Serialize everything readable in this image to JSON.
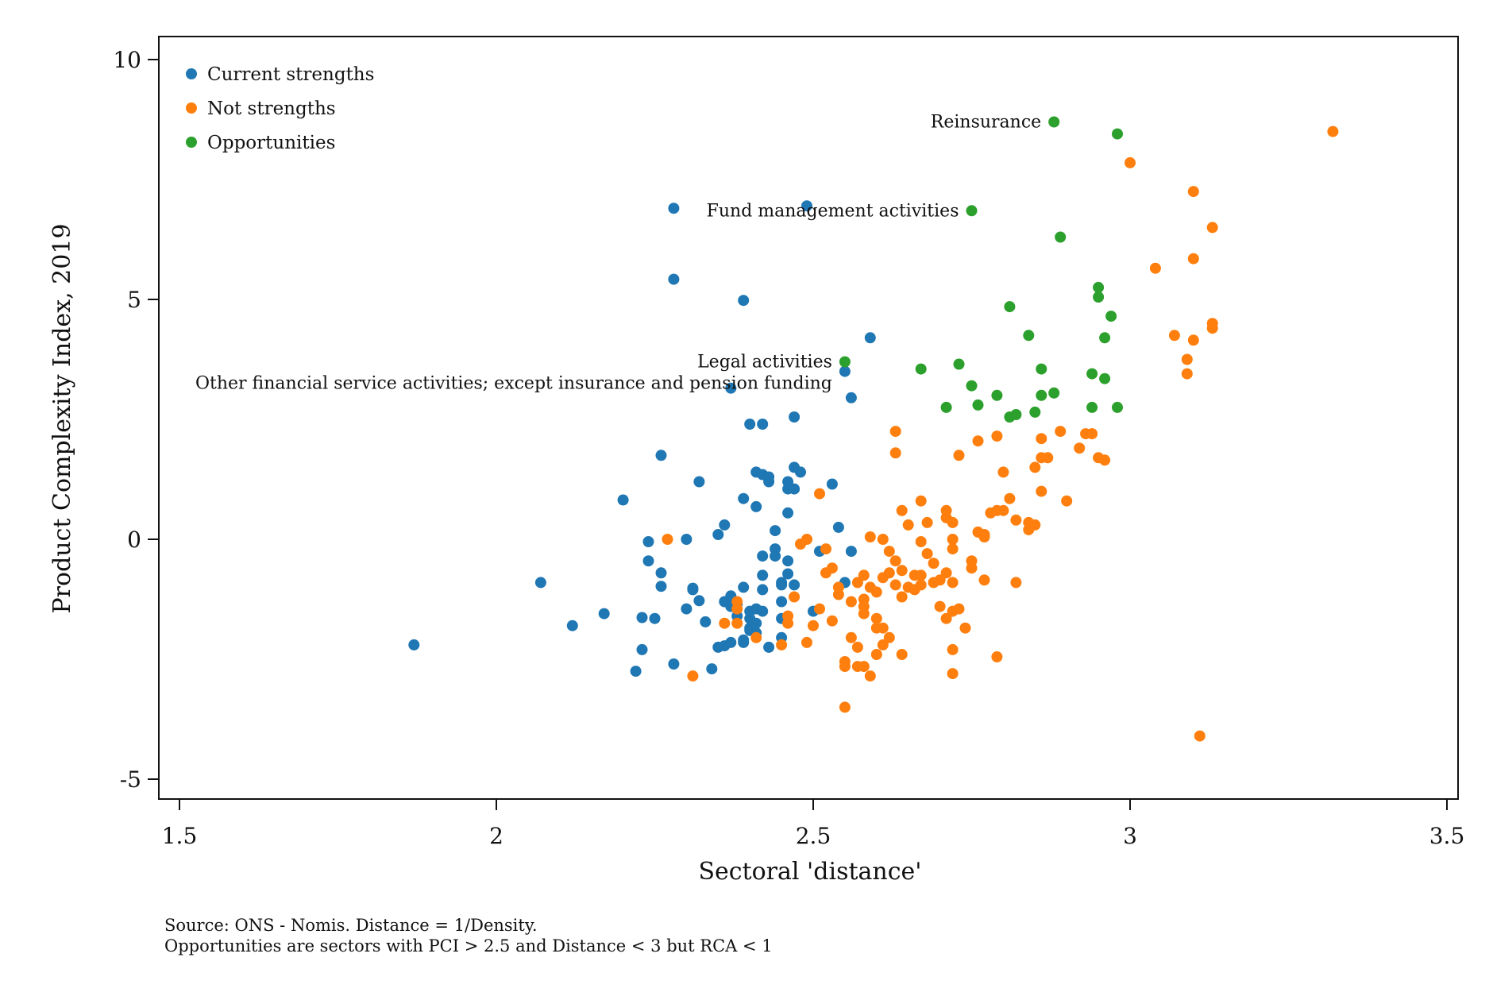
{
  "chart_data": {
    "type": "scatter",
    "title": "",
    "xlabel": "Sectoral 'distance'",
    "ylabel": "Product Complexity Index, 2019",
    "xlim": [
      1.5,
      3.5
    ],
    "ylim": [
      -5,
      10
    ],
    "xticks": [
      "1.5",
      "2",
      "2.5",
      "3",
      "3.5"
    ],
    "yticks": [
      "-5",
      "0",
      "5",
      "10"
    ],
    "grid": false,
    "legend_position": "top-left",
    "series": [
      {
        "name": "Current strengths",
        "color": "#1f77b4",
        "points": [
          [
            1.87,
            -2.2
          ],
          [
            2.07,
            -0.9
          ],
          [
            2.12,
            -1.8
          ],
          [
            2.17,
            -1.55
          ],
          [
            2.2,
            0.82
          ],
          [
            2.22,
            -2.75
          ],
          [
            2.23,
            -2.3
          ],
          [
            2.23,
            -1.63
          ],
          [
            2.24,
            -0.45
          ],
          [
            2.24,
            -0.05
          ],
          [
            2.25,
            -1.65
          ],
          [
            2.26,
            -0.98
          ],
          [
            2.26,
            -0.7
          ],
          [
            2.26,
            1.75
          ],
          [
            2.28,
            -2.6
          ],
          [
            2.28,
            6.9
          ],
          [
            2.28,
            5.42
          ],
          [
            2.3,
            -1.45
          ],
          [
            2.3,
            0
          ],
          [
            2.31,
            -1.02
          ],
          [
            2.31,
            -1.05
          ],
          [
            2.32,
            -1.28
          ],
          [
            2.32,
            1.2
          ],
          [
            2.33,
            -1.72
          ],
          [
            2.34,
            -2.7
          ],
          [
            2.35,
            -2.25
          ],
          [
            2.35,
            0.1
          ],
          [
            2.36,
            0.3
          ],
          [
            2.36,
            -2.22
          ],
          [
            2.36,
            -1.3
          ],
          [
            2.37,
            -1.18
          ],
          [
            2.37,
            -2.15
          ],
          [
            2.37,
            -1.4
          ],
          [
            2.37,
            3.15
          ],
          [
            2.38,
            -1.6
          ],
          [
            2.38,
            -1.35
          ],
          [
            2.39,
            4.98
          ],
          [
            2.39,
            -2.1
          ],
          [
            2.39,
            -2.15
          ],
          [
            2.39,
            0.85
          ],
          [
            2.39,
            -1
          ],
          [
            2.4,
            -1.9
          ],
          [
            2.4,
            -1.65
          ],
          [
            2.4,
            -1.5
          ],
          [
            2.4,
            -1.85
          ],
          [
            2.4,
            2.4
          ],
          [
            2.41,
            -1.75
          ],
          [
            2.41,
            -1.45
          ],
          [
            2.41,
            -1.95
          ],
          [
            2.41,
            0.68
          ],
          [
            2.41,
            1.4
          ],
          [
            2.42,
            -0.35
          ],
          [
            2.42,
            -1.05
          ],
          [
            2.42,
            -0.75
          ],
          [
            2.42,
            -1.5
          ],
          [
            2.42,
            2.4
          ],
          [
            2.42,
            1.35
          ],
          [
            2.43,
            -2.25
          ],
          [
            2.43,
            1.3
          ],
          [
            2.43,
            1.2
          ],
          [
            2.44,
            0.18
          ],
          [
            2.44,
            -0.35
          ],
          [
            2.44,
            -0.2
          ],
          [
            2.45,
            -0.9
          ],
          [
            2.45,
            -1.65
          ],
          [
            2.45,
            -1.3
          ],
          [
            2.45,
            -2.05
          ],
          [
            2.45,
            -0.95
          ],
          [
            2.46,
            -0.72
          ],
          [
            2.46,
            1.2
          ],
          [
            2.46,
            1.05
          ],
          [
            2.46,
            -0.45
          ],
          [
            2.46,
            0.55
          ],
          [
            2.47,
            -0.95
          ],
          [
            2.47,
            1.05
          ],
          [
            2.47,
            2.55
          ],
          [
            2.47,
            1.5
          ],
          [
            2.48,
            1.4
          ],
          [
            2.49,
            6.95
          ],
          [
            2.5,
            -1.5
          ],
          [
            2.51,
            -0.25
          ],
          [
            2.53,
            1.15
          ],
          [
            2.54,
            0.25
          ],
          [
            2.55,
            -0.9
          ],
          [
            2.55,
            3.5
          ],
          [
            2.56,
            2.95
          ],
          [
            2.56,
            -0.25
          ],
          [
            2.59,
            4.2
          ]
        ]
      },
      {
        "name": "Not strengths",
        "color": "#ff7f0e",
        "points": [
          [
            2.27,
            0
          ],
          [
            2.31,
            -2.85
          ],
          [
            2.36,
            -1.75
          ],
          [
            2.38,
            -1.3
          ],
          [
            2.38,
            -1.45
          ],
          [
            2.38,
            -1.75
          ],
          [
            2.41,
            -2.05
          ],
          [
            2.45,
            -2.2
          ],
          [
            2.46,
            -1.75
          ],
          [
            2.46,
            -1.6
          ],
          [
            2.47,
            -1.2
          ],
          [
            2.48,
            -0.1
          ],
          [
            2.49,
            -2.15
          ],
          [
            2.49,
            0
          ],
          [
            2.5,
            -1.8
          ],
          [
            2.51,
            -1.45
          ],
          [
            2.51,
            0.95
          ],
          [
            2.52,
            -0.2
          ],
          [
            2.52,
            -0.7
          ],
          [
            2.53,
            -1.7
          ],
          [
            2.53,
            -0.6
          ],
          [
            2.54,
            -1
          ],
          [
            2.54,
            -1.15
          ],
          [
            2.55,
            -2.55
          ],
          [
            2.55,
            -2.65
          ],
          [
            2.55,
            -3.5
          ],
          [
            2.56,
            -1.3
          ],
          [
            2.56,
            -2.05
          ],
          [
            2.57,
            -0.9
          ],
          [
            2.57,
            -2.65
          ],
          [
            2.57,
            -2.25
          ],
          [
            2.58,
            -1.4
          ],
          [
            2.58,
            -1.55
          ],
          [
            2.58,
            -2.65
          ],
          [
            2.58,
            -1.25
          ],
          [
            2.58,
            -0.75
          ],
          [
            2.59,
            -2.85
          ],
          [
            2.59,
            0.05
          ],
          [
            2.59,
            -1
          ],
          [
            2.6,
            -1.85
          ],
          [
            2.6,
            -2.4
          ],
          [
            2.6,
            -1.65
          ],
          [
            2.6,
            -1.1
          ],
          [
            2.61,
            0
          ],
          [
            2.61,
            -0.8
          ],
          [
            2.61,
            -2.2
          ],
          [
            2.61,
            -1.85
          ],
          [
            2.62,
            -0.7
          ],
          [
            2.62,
            -2.05
          ],
          [
            2.62,
            -0.25
          ],
          [
            2.63,
            -0.45
          ],
          [
            2.63,
            -0.95
          ],
          [
            2.63,
            2.25
          ],
          [
            2.63,
            1.8
          ],
          [
            2.64,
            -0.65
          ],
          [
            2.64,
            0.6
          ],
          [
            2.64,
            -1.2
          ],
          [
            2.64,
            -2.4
          ],
          [
            2.65,
            -1
          ],
          [
            2.65,
            0.3
          ],
          [
            2.66,
            -0.75
          ],
          [
            2.66,
            -1.05
          ],
          [
            2.67,
            -0.75
          ],
          [
            2.67,
            -0.95
          ],
          [
            2.67,
            -0.05
          ],
          [
            2.67,
            0.8
          ],
          [
            2.68,
            -0.3
          ],
          [
            2.68,
            0.35
          ],
          [
            2.69,
            -0.5
          ],
          [
            2.69,
            -0.9
          ],
          [
            2.7,
            -0.85
          ],
          [
            2.7,
            -1.4
          ],
          [
            2.71,
            -1.65
          ],
          [
            2.71,
            -0.7
          ],
          [
            2.71,
            0.45
          ],
          [
            2.71,
            0.6
          ],
          [
            2.72,
            0
          ],
          [
            2.72,
            -1.5
          ],
          [
            2.72,
            -0.2
          ],
          [
            2.72,
            0.35
          ],
          [
            2.72,
            -0.9
          ],
          [
            2.72,
            -2.3
          ],
          [
            2.72,
            -2.8
          ],
          [
            2.73,
            1.75
          ],
          [
            2.73,
            -1.45
          ],
          [
            2.74,
            -1.85
          ],
          [
            2.75,
            -0.6
          ],
          [
            2.75,
            -0.45
          ],
          [
            2.76,
            0.15
          ],
          [
            2.76,
            2.05
          ],
          [
            2.77,
            0.05
          ],
          [
            2.77,
            0.1
          ],
          [
            2.77,
            -0.85
          ],
          [
            2.78,
            0.55
          ],
          [
            2.79,
            -2.45
          ],
          [
            2.79,
            2.15
          ],
          [
            2.79,
            0.6
          ],
          [
            2.8,
            1.4
          ],
          [
            2.8,
            0.6
          ],
          [
            2.81,
            0.85
          ],
          [
            2.82,
            0.4
          ],
          [
            2.82,
            -0.9
          ],
          [
            2.84,
            0.2
          ],
          [
            2.84,
            0.35
          ],
          [
            2.85,
            0.3
          ],
          [
            2.85,
            1.5
          ],
          [
            2.86,
            1.7
          ],
          [
            2.86,
            2.1
          ],
          [
            2.86,
            1.0
          ],
          [
            2.87,
            1.7
          ],
          [
            2.89,
            2.25
          ],
          [
            2.9,
            0.8
          ],
          [
            2.92,
            1.9
          ],
          [
            2.93,
            2.2
          ],
          [
            2.94,
            2.2
          ],
          [
            2.95,
            1.7
          ],
          [
            2.96,
            1.65
          ],
          [
            3.0,
            7.85
          ],
          [
            3.04,
            5.65
          ],
          [
            3.07,
            4.25
          ],
          [
            3.09,
            3.75
          ],
          [
            3.09,
            3.45
          ],
          [
            3.1,
            4.15
          ],
          [
            3.1,
            5.85
          ],
          [
            3.1,
            7.25
          ],
          [
            3.11,
            -4.1
          ],
          [
            3.13,
            4.5
          ],
          [
            3.13,
            4.4
          ],
          [
            3.13,
            6.5
          ],
          [
            3.32,
            8.5
          ]
        ]
      },
      {
        "name": "Opportunities",
        "color": "#2ca02c",
        "points": [
          [
            2.55,
            3.7
          ],
          [
            2.67,
            3.55
          ],
          [
            2.71,
            2.75
          ],
          [
            2.73,
            3.65
          ],
          [
            2.75,
            3.2
          ],
          [
            2.75,
            6.85
          ],
          [
            2.76,
            2.8
          ],
          [
            2.79,
            3
          ],
          [
            2.81,
            4.85
          ],
          [
            2.81,
            2.55
          ],
          [
            2.82,
            2.6
          ],
          [
            2.84,
            4.25
          ],
          [
            2.85,
            2.65
          ],
          [
            2.86,
            3
          ],
          [
            2.86,
            3.55
          ],
          [
            2.88,
            3.05
          ],
          [
            2.88,
            8.7
          ],
          [
            2.89,
            6.3
          ],
          [
            2.94,
            2.75
          ],
          [
            2.94,
            3.45
          ],
          [
            2.95,
            5.25
          ],
          [
            2.95,
            5.05
          ],
          [
            2.96,
            4.2
          ],
          [
            2.96,
            3.35
          ],
          [
            2.97,
            4.65
          ],
          [
            2.98,
            2.75
          ],
          [
            2.98,
            8.45
          ]
        ]
      }
    ],
    "annotations": [
      {
        "text": "Reinsurance",
        "x": 2.88,
        "y": 8.7
      },
      {
        "text": "Fund management activities",
        "x": 2.75,
        "y": 6.85
      },
      {
        "text": "Legal activities",
        "x": 2.55,
        "y": 3.7
      },
      {
        "text": "Other financial service activities; except insurance and pension funding",
        "x": 2.55,
        "y": 3.5
      }
    ]
  },
  "notes": [
    "Source: ONS - Nomis. Distance = 1/Density.",
    "Opportunities are sectors with PCI > 2.5 and Distance < 3 but RCA < 1"
  ]
}
